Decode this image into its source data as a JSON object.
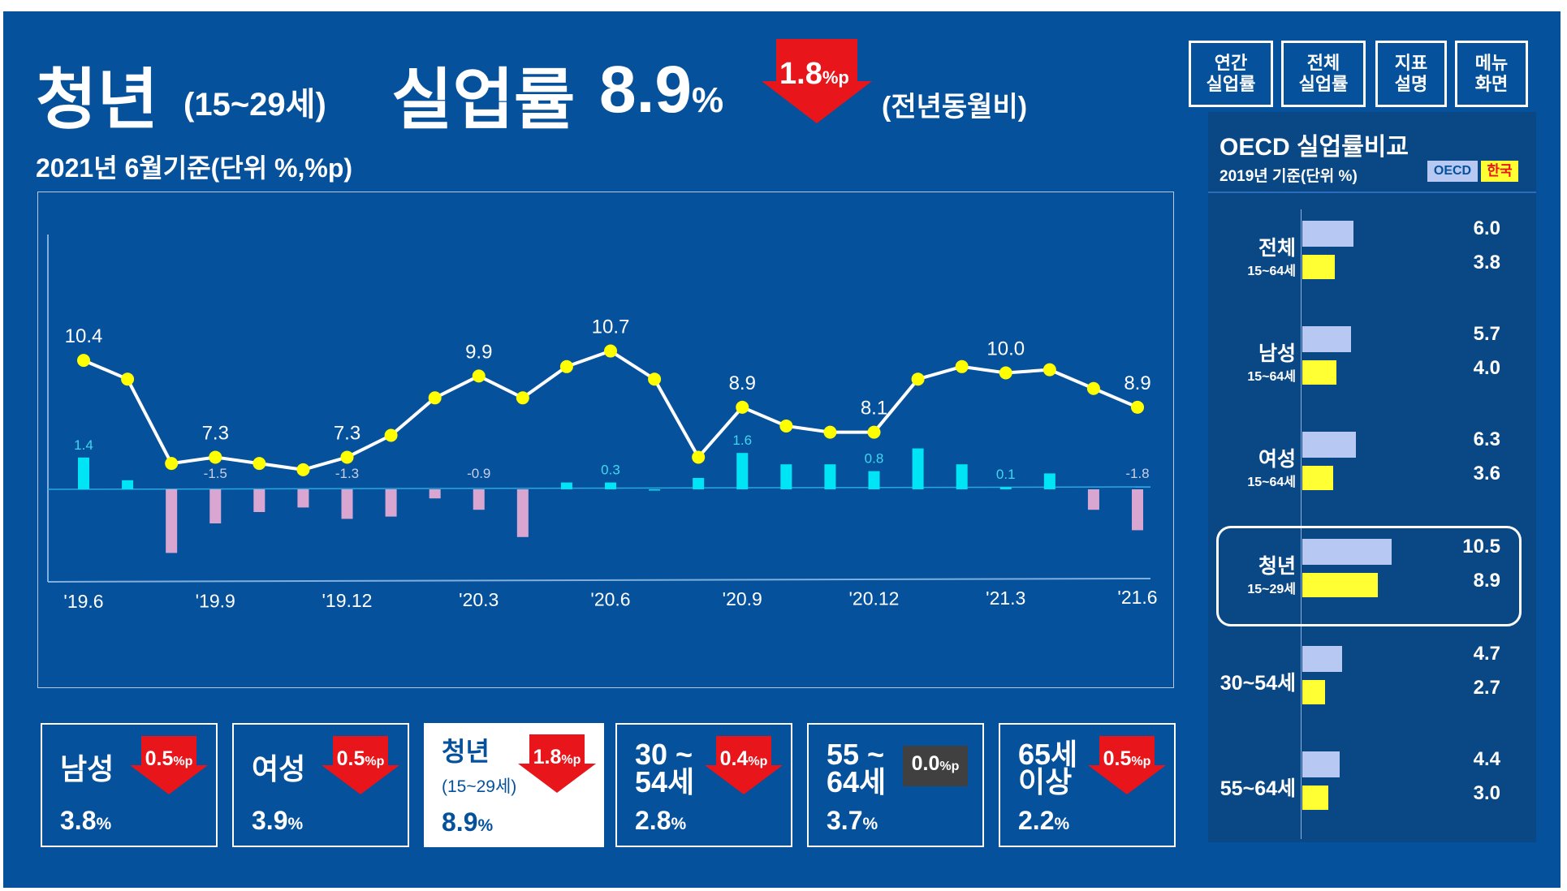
{
  "header": {
    "title_main": "청년",
    "title_age": "(15~29세)",
    "title_metric": "실업률",
    "title_value": "8.9",
    "title_unit": "%",
    "change_value": "1.8",
    "change_unit": "%p",
    "change_direction": "down",
    "change_note": "(전년동월비)",
    "subtitle": "2021년 6월기준(단위 %,%p)"
  },
  "nav": [
    {
      "label": "연간\n실업률"
    },
    {
      "label": "전체\n실업률"
    },
    {
      "label": "지표\n설명"
    },
    {
      "label": "메뉴\n화면"
    }
  ],
  "colors": {
    "background": "#06519b",
    "line": "#ffffff",
    "points": "#ffff00",
    "bar_positive": "#00e5f5",
    "bar_negative": "#d9a6d2",
    "arrow_down": "#e8161b",
    "oecd_bar": "#b7c9f2",
    "korea_bar": "#ffff33"
  },
  "chart_data": {
    "type": "line",
    "title": "",
    "x_tick_labels": [
      "'19.6",
      "'19.9",
      "'19.12",
      "'20.3",
      "'20.6",
      "'20.9",
      "'20.12",
      "'21.3",
      "'21.6"
    ],
    "x": [
      "'19.6",
      "'19.7",
      "'19.8",
      "'19.9",
      "'19.10",
      "'19.11",
      "'19.12",
      "'20.1",
      "'20.2",
      "'20.3",
      "'20.4",
      "'20.5",
      "'20.6",
      "'20.7",
      "'20.8",
      "'20.9",
      "'20.10",
      "'20.11",
      "'20.12",
      "'21.1",
      "'21.2",
      "'21.3",
      "'21.4",
      "'21.5",
      "'21.6"
    ],
    "series": [
      {
        "name": "청년 실업률",
        "type": "line",
        "values": [
          10.4,
          9.8,
          7.1,
          7.3,
          7.1,
          6.9,
          7.3,
          8.0,
          9.2,
          9.9,
          9.2,
          10.2,
          10.7,
          9.8,
          7.3,
          8.9,
          8.3,
          8.1,
          8.1,
          9.8,
          10.2,
          10.0,
          10.1,
          9.5,
          8.9
        ],
        "labeled": [
          {
            "index": 0,
            "label": "10.4"
          },
          {
            "index": 3,
            "label": "7.3"
          },
          {
            "index": 6,
            "label": "7.3"
          },
          {
            "index": 9,
            "label": "9.9"
          },
          {
            "index": 12,
            "label": "10.7"
          },
          {
            "index": 15,
            "label": "8.9"
          },
          {
            "index": 18,
            "label": "8.1"
          },
          {
            "index": 21,
            "label": "10.0"
          },
          {
            "index": 24,
            "label": "8.9"
          }
        ]
      },
      {
        "name": "전년동월비 증감(%p)",
        "type": "bar",
        "values": [
          1.4,
          0.4,
          -2.8,
          -1.5,
          -1.0,
          -0.8,
          -1.3,
          -1.2,
          -0.4,
          -0.9,
          -2.1,
          0.3,
          0.3,
          0.0,
          0.5,
          1.6,
          1.1,
          1.1,
          0.8,
          1.8,
          1.1,
          0.1,
          0.7,
          -0.9,
          -1.8
        ],
        "labeled": [
          {
            "index": 0,
            "label": "1.4"
          },
          {
            "index": 3,
            "label": "-1.5"
          },
          {
            "index": 6,
            "label": "-1.3"
          },
          {
            "index": 9,
            "label": "-0.9"
          },
          {
            "index": 12,
            "label": "0.3"
          },
          {
            "index": 15,
            "label": "1.6"
          },
          {
            "index": 18,
            "label": "0.8"
          },
          {
            "index": 21,
            "label": "0.1"
          },
          {
            "index": 24,
            "label": "-1.8"
          }
        ]
      }
    ]
  },
  "cards": [
    {
      "label": "남성",
      "value": "3.8",
      "unit": "%",
      "change": "0.5",
      "change_unit": "%p",
      "direction": "down"
    },
    {
      "label": "여성",
      "value": "3.9",
      "unit": "%",
      "change": "0.5",
      "change_unit": "%p",
      "direction": "down"
    },
    {
      "label": "청년",
      "sublabel": "(15~29세)",
      "value": "8.9",
      "unit": "%",
      "change": "1.8",
      "change_unit": "%p",
      "direction": "down",
      "highlight": true
    },
    {
      "label": "30 ~\n54세",
      "value": "2.8",
      "unit": "%",
      "change": "0.4",
      "change_unit": "%p",
      "direction": "down"
    },
    {
      "label": "55 ~\n64세",
      "value": "3.7",
      "unit": "%",
      "change": "0.0",
      "change_unit": "%p",
      "direction": "flat"
    },
    {
      "label": "65세\n이상",
      "value": "2.2",
      "unit": "%",
      "change": "0.5",
      "change_unit": "%p",
      "direction": "down"
    }
  ],
  "oecd": {
    "title": "OECD 실업률비교",
    "subtitle": "2019년 기준(단위 %)",
    "legend_oecd": "OECD",
    "legend_korea": "한국",
    "rows": [
      {
        "label": "전체",
        "sublabel": "15~64세",
        "oecd": 6.0,
        "korea": 3.8,
        "oecd_text": "6.0",
        "korea_text": "3.8"
      },
      {
        "label": "남성",
        "sublabel": "15~64세",
        "oecd": 5.7,
        "korea": 4.0,
        "oecd_text": "5.7",
        "korea_text": "4.0"
      },
      {
        "label": "여성",
        "sublabel": "15~64세",
        "oecd": 6.3,
        "korea": 3.6,
        "oecd_text": "6.3",
        "korea_text": "3.6"
      },
      {
        "label": "청년",
        "sublabel": "15~29세",
        "oecd": 10.5,
        "korea": 8.9,
        "oecd_text": "10.5",
        "korea_text": "8.9",
        "highlight": true
      },
      {
        "label": "30~54세",
        "sublabel": "",
        "oecd": 4.7,
        "korea": 2.7,
        "oecd_text": "4.7",
        "korea_text": "2.7"
      },
      {
        "label": "55~64세",
        "sublabel": "",
        "oecd": 4.4,
        "korea": 3.0,
        "oecd_text": "4.4",
        "korea_text": "3.0"
      }
    ]
  }
}
